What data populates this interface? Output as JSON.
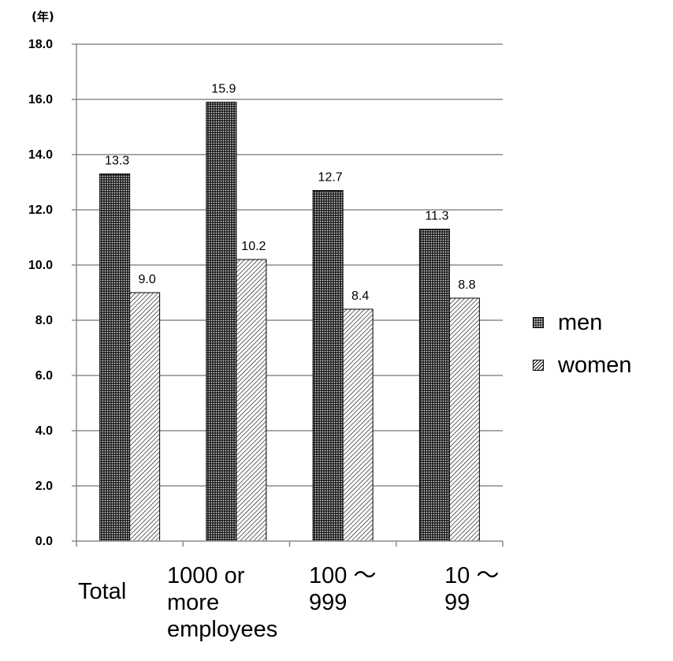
{
  "unit_label": "(年)",
  "legend": {
    "men": "men",
    "women": "women"
  },
  "category_labels": [
    "Total",
    "1000 or more employees",
    "100 〜\n999",
    "10 〜\n99"
  ],
  "chart_data": {
    "type": "bar",
    "categories": [
      "Total",
      "1000 or more employees",
      "100〜999",
      "10〜99"
    ],
    "series": [
      {
        "name": "men",
        "values": [
          13.3,
          15.9,
          12.7,
          11.3
        ],
        "data_labels": [
          "13.3",
          "15.9",
          "12.7",
          "11.3"
        ]
      },
      {
        "name": "women",
        "values": [
          9.0,
          10.2,
          8.4,
          8.8
        ],
        "data_labels": [
          "9.0",
          "10.2",
          "8.4",
          "8.8"
        ]
      }
    ],
    "ylim": [
      0,
      18
    ],
    "yticks": [
      "0.0",
      "2.0",
      "4.0",
      "6.0",
      "8.0",
      "10.0",
      "12.0",
      "14.0",
      "16.0",
      "18.0"
    ],
    "ylabel": "(年)",
    "grid": true,
    "legend_position": "right",
    "colors": {
      "men": "#1a1a1a",
      "women": "#ffffff",
      "grid": "#8c8c8c",
      "axis": "#8c8c8c"
    }
  }
}
